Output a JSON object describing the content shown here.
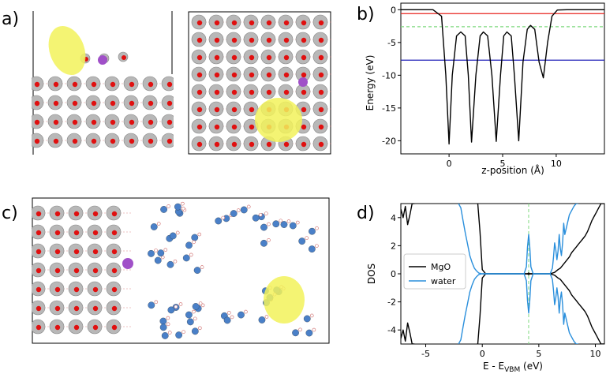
{
  "panel_labels": {
    "a": "a)",
    "b": "b)",
    "c": "c)",
    "d": "d)"
  },
  "chart_data": [
    {
      "panel": "b",
      "type": "line",
      "title": "",
      "xlabel": "z-position (Å)",
      "ylabel": "Energy (eV)",
      "xlim": [
        -4.5,
        14.5
      ],
      "ylim": [
        -22,
        1
      ],
      "xticks": [
        0,
        5,
        10
      ],
      "yticks": [
        0,
        -5,
        -10,
        -15,
        -20
      ],
      "hlines": [
        {
          "name": "red",
          "y": -0.6,
          "color": "#e8221c",
          "style": "solid"
        },
        {
          "name": "green",
          "y": -2.6,
          "color": "#7fd97f",
          "style": "dashed"
        },
        {
          "name": "blue",
          "y": -7.7,
          "color": "#1f1fb8",
          "style": "solid"
        }
      ],
      "series": [
        {
          "name": "potential",
          "color": "#000000",
          "x": [
            -4.5,
            -1.5,
            -0.7,
            -0.3,
            0.0,
            0.3,
            0.7,
            1.1,
            1.5,
            1.8,
            2.1,
            2.5,
            2.9,
            3.2,
            3.6,
            4.0,
            4.4,
            4.8,
            5.1,
            5.4,
            5.8,
            6.1,
            6.5,
            6.9,
            7.3,
            7.6,
            8.0,
            8.4,
            8.8,
            9.2,
            9.6,
            10.1,
            11.0,
            14.5
          ],
          "y": [
            0,
            0,
            -1,
            -10,
            -20.5,
            -10,
            -4,
            -3.4,
            -4,
            -10,
            -20.2,
            -10,
            -4,
            -3.4,
            -4,
            -10,
            -20.1,
            -10,
            -4,
            -3.4,
            -4,
            -10,
            -20.0,
            -8,
            -3,
            -2.4,
            -3,
            -8,
            -10.4,
            -5,
            -1,
            -0.05,
            0,
            0
          ]
        }
      ]
    },
    {
      "panel": "d",
      "type": "line",
      "title": "",
      "xlabel": "E - E",
      "xlabel_sub": "VBM",
      "xlabel_unit": " (eV)",
      "ylabel": "DOS",
      "xlim": [
        -7.2,
        10.8
      ],
      "ylim": [
        -5,
        5
      ],
      "xticks": [
        -5,
        0,
        5,
        10
      ],
      "yticks": [
        -4,
        -2,
        0,
        2,
        4
      ],
      "vline": {
        "x": 4.1,
        "color": "#7fd97f",
        "style": "dashed"
      },
      "legend": {
        "position": "center-left",
        "entries": [
          {
            "label": "MgO",
            "color": "#000000"
          },
          {
            "label": "water",
            "color": "#2a8fdc"
          }
        ]
      },
      "series": [
        {
          "name": "MgO",
          "color": "#000000",
          "x": [
            -7.2,
            -7.0,
            -6.8,
            -6.6,
            -6.4,
            -6.2,
            -6.0
          ],
          "y": [
            4.6,
            4.0,
            4.8,
            3.5,
            4.2,
            5.0,
            5.0
          ]
        },
        {
          "name": "MgO",
          "color": "#000000",
          "x": [
            -7.2,
            -7.0,
            -6.8,
            -6.6,
            -6.4,
            -6.2,
            -6.0
          ],
          "y": [
            -4.6,
            -4.0,
            -4.8,
            -3.5,
            -4.2,
            -5.0,
            -5.0
          ]
        },
        {
          "name": "MgO",
          "color": "#000000",
          "x": [
            -0.4,
            -0.2,
            0.0,
            0.3,
            1.0,
            3.0,
            4.0,
            4.1,
            4.2,
            5.0,
            6.0,
            6.4,
            6.7,
            6.9,
            7.1,
            7.3,
            7.5,
            7.7,
            7.9,
            8.1,
            8.3,
            8.5,
            8.7,
            8.9,
            9.1,
            9.3,
            9.5,
            9.7,
            9.9,
            10.1,
            10.3,
            10.5,
            10.8
          ],
          "y": [
            5,
            3,
            0.3,
            0,
            0,
            0,
            0,
            0.06,
            0,
            0,
            0,
            0.1,
            0.3,
            0.4,
            0.6,
            0.8,
            1.0,
            1.2,
            1.5,
            1.7,
            1.9,
            2.1,
            2.3,
            2.5,
            2.7,
            3.0,
            3.4,
            3.8,
            4.1,
            4.4,
            4.7,
            5.0,
            5.0
          ]
        },
        {
          "name": "MgO",
          "color": "#000000",
          "x": [
            -0.4,
            -0.2,
            0.0,
            0.3,
            1.0,
            3.0,
            4.0,
            4.1,
            4.2,
            5.0,
            6.0,
            6.4,
            6.7,
            6.9,
            7.1,
            7.3,
            7.5,
            7.7,
            7.9,
            8.1,
            8.3,
            8.5,
            8.7,
            8.9,
            9.1,
            9.3,
            9.5,
            9.7,
            9.9,
            10.1,
            10.3,
            10.5,
            10.8
          ],
          "y": [
            -5,
            -3,
            -0.3,
            0,
            0,
            0,
            0,
            -0.06,
            0,
            0,
            0,
            -0.1,
            -0.3,
            -0.4,
            -0.6,
            -0.8,
            -1.0,
            -1.2,
            -1.5,
            -1.7,
            -1.9,
            -2.1,
            -2.3,
            -2.5,
            -2.7,
            -3.0,
            -3.4,
            -3.8,
            -4.1,
            -4.4,
            -4.7,
            -5.0,
            -5.0
          ]
        },
        {
          "name": "water",
          "color": "#2a8fdc",
          "x": [
            -2.1,
            -1.9,
            -1.7,
            -1.5,
            -1.3,
            -1.1,
            -0.9,
            -0.7,
            -0.5,
            -0.3,
            0.0,
            1.0,
            3.7,
            3.9,
            4.0,
            4.1,
            4.2,
            4.3,
            4.5,
            6.0,
            6.2,
            6.3,
            6.4,
            6.5,
            6.6,
            6.7,
            6.8,
            6.9,
            7.0,
            7.1,
            7.2,
            7.3,
            7.5,
            7.7,
            7.9,
            8.1,
            8.3,
            8.5
          ],
          "y": [
            5,
            4.7,
            3.8,
            2.9,
            2.1,
            1.3,
            0.8,
            0.4,
            0.2,
            0.05,
            0,
            0,
            0,
            0.5,
            1.9,
            2.8,
            1.9,
            0.5,
            0,
            0,
            0.4,
            1.2,
            2.2,
            1.7,
            1.0,
            1.6,
            2.8,
            1.8,
            1.3,
            2.2,
            3.6,
            2.8,
            3.5,
            4.2,
            4.5,
            4.8,
            5.0,
            5.0
          ]
        },
        {
          "name": "water",
          "color": "#2a8fdc",
          "x": [
            -2.1,
            -1.9,
            -1.7,
            -1.5,
            -1.3,
            -1.1,
            -0.9,
            -0.7,
            -0.5,
            -0.3,
            0.0,
            1.0,
            3.7,
            3.9,
            4.0,
            4.1,
            4.2,
            4.3,
            4.5,
            6.0,
            6.2,
            6.3,
            6.4,
            6.5,
            6.6,
            6.7,
            6.8,
            6.9,
            7.0,
            7.1,
            7.2,
            7.3,
            7.5,
            7.7,
            7.9,
            8.1,
            8.3,
            8.5
          ],
          "y": [
            -5,
            -4.7,
            -3.8,
            -2.9,
            -2.1,
            -1.3,
            -0.8,
            -0.4,
            -0.2,
            -0.05,
            0,
            0,
            0,
            -0.5,
            -1.9,
            -2.8,
            -1.9,
            -0.5,
            0,
            0,
            -0.4,
            -1.2,
            -2.2,
            -1.7,
            -1.0,
            -1.6,
            -2.8,
            -1.8,
            -1.3,
            -2.2,
            -3.6,
            -2.8,
            -3.5,
            -4.2,
            -4.5,
            -4.8,
            -5.0,
            -5.0
          ]
        }
      ]
    }
  ],
  "colors": {
    "oxygen": "#e01010",
    "magnesium": "#b8b8b8",
    "dopant": "#a050c8",
    "isosurface": "#f2f25a",
    "water_oxygen": "#4a80c8"
  }
}
